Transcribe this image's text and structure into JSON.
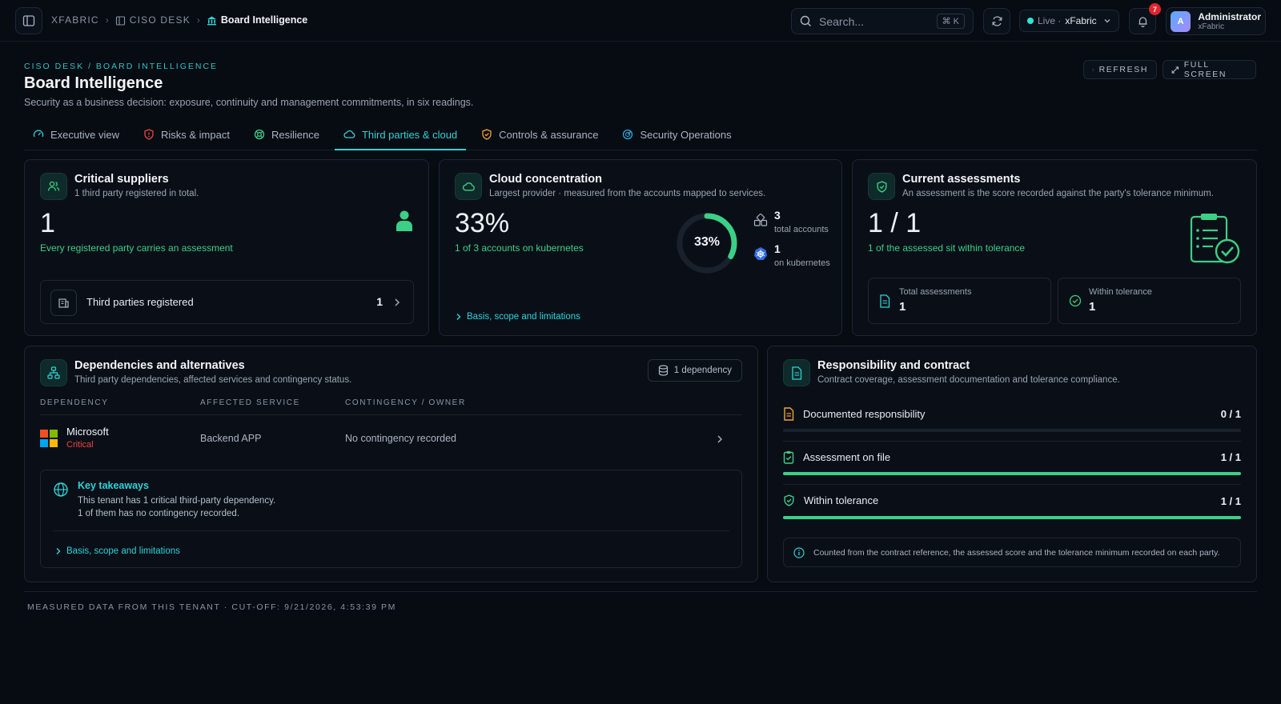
{
  "topbar": {
    "breadcrumb": [
      "XFABRIC",
      "CISO DESK",
      "Board Intelligence"
    ],
    "search_placeholder": "Search...",
    "search_shortcut": "⌘ K",
    "live_label": "Live ·",
    "tenant": "xFabric",
    "notifications": "7",
    "user_initial": "A",
    "user_name": "Administrator",
    "user_org": "xFabric"
  },
  "header": {
    "eyebrow": "CISO DESK / BOARD INTELLIGENCE",
    "title": "Board Intelligence",
    "subtitle": "Security as a business decision: exposure, continuity and management commitments, in six readings.",
    "refresh": "REFRESH",
    "fullscreen": "FULL SCREEN"
  },
  "tabs": [
    {
      "label": "Executive view"
    },
    {
      "label": "Risks & impact"
    },
    {
      "label": "Resilience"
    },
    {
      "label": "Third parties & cloud"
    },
    {
      "label": "Controls & assurance"
    },
    {
      "label": "Security Operations"
    }
  ],
  "suppliers": {
    "title": "Critical suppliers",
    "sub": "1 third party registered in total.",
    "value": "1",
    "note": "Every registered party carries an assessment",
    "row_label": "Third parties registered",
    "row_value": "1"
  },
  "cloud": {
    "title": "Cloud concentration",
    "sub": "Largest provider · measured from the accounts mapped to services.",
    "value": "33%",
    "note": "1 of 3 accounts on kubernetes",
    "donut_label": "33%",
    "donut_fraction": 0.33,
    "stat1_value": "3",
    "stat1_label": "total accounts",
    "stat2_value": "1",
    "stat2_label": "on kubernetes",
    "link": "Basis, scope and limitations"
  },
  "assessments": {
    "title": "Current assessments",
    "sub": "An assessment is the score recorded against the party's tolerance minimum.",
    "value": "1 / 1",
    "note": "1 of the assessed sit within tolerance",
    "box1_label": "Total assessments",
    "box1_value": "1",
    "box2_label": "Within tolerance",
    "box2_value": "1"
  },
  "dependencies": {
    "title": "Dependencies and alternatives",
    "sub": "Third party dependencies, affected services and contingency status.",
    "badge": "1 dependency",
    "columns": [
      "DEPENDENCY",
      "AFFECTED SERVICE",
      "CONTINGENCY / OWNER"
    ],
    "rows": [
      {
        "name": "Microsoft",
        "severity": "Critical",
        "service": "Backend APP",
        "contingency": "No contingency recorded"
      }
    ],
    "takeaways_title": "Key takeaways",
    "takeaway1": "This tenant has 1 critical third-party dependency.",
    "takeaway2": "1 of them has no contingency recorded.",
    "link": "Basis, scope and limitations"
  },
  "responsibility": {
    "title": "Responsibility and contract",
    "sub": "Contract coverage, assessment documentation and tolerance compliance.",
    "items": [
      {
        "label": "Documented responsibility",
        "value": "0 / 1",
        "fraction": 0
      },
      {
        "label": "Assessment on file",
        "value": "1 / 1",
        "fraction": 1
      },
      {
        "label": "Within tolerance",
        "value": "1 / 1",
        "fraction": 1
      }
    ],
    "info": "Counted from the contract reference, the assessed score and the tolerance minimum recorded on each party."
  },
  "footer": "MEASURED DATA FROM THIS TENANT · CUT-OFF: 9/21/2026, 4:53:39 PM",
  "colors": {
    "accent": "#2ed3d8",
    "green": "#3ccf86",
    "critical": "#ef4444",
    "amber": "#f0a43a"
  }
}
